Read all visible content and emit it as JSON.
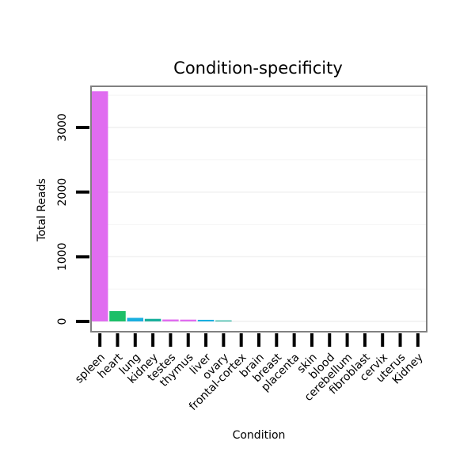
{
  "chart_data": {
    "type": "bar",
    "title": "Condition-specificity",
    "xlabel": "Condition",
    "ylabel": "Total Reads",
    "ylim": [
      0,
      3600
    ],
    "yticks": [
      0,
      1000,
      2000,
      3000
    ],
    "categories": [
      "spleen",
      "heart",
      "lung",
      "kidney",
      "testes",
      "thymus",
      "liver",
      "ovary",
      "frontal-cortex",
      "brain",
      "breast",
      "placenta",
      "skin",
      "blood",
      "cerebellum",
      "fibroblast",
      "cervix",
      "uterus",
      "Kidney"
    ],
    "values": [
      3560,
      160,
      55,
      40,
      30,
      28,
      25,
      15,
      0,
      0,
      0,
      0,
      0,
      0,
      0,
      0,
      0,
      0,
      0
    ],
    "colors": [
      "#e06cf0",
      "#1cbf68",
      "#1aafe0",
      "#1ab09c",
      "#e06cf0",
      "#e06cf0",
      "#1aafe0",
      "#1ab09c",
      "#1ab09c",
      "#1ab09c",
      "#1ab09c",
      "#1ab09c",
      "#1ab09c",
      "#1ab09c",
      "#1ab09c",
      "#1ab09c",
      "#1ab09c",
      "#1ab09c",
      "#1ab09c"
    ],
    "grid": true,
    "legend": "none"
  }
}
